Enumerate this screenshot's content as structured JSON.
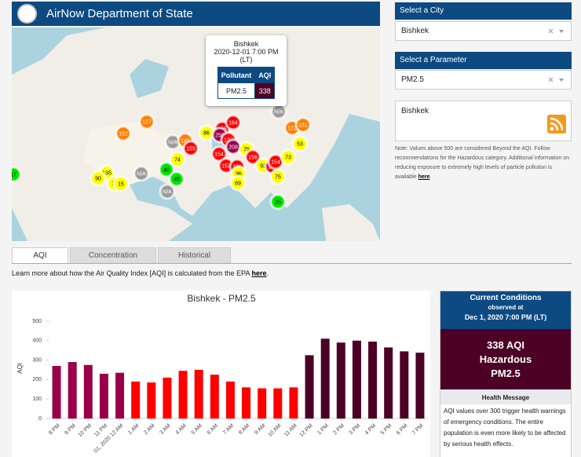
{
  "header": {
    "title": "AirNow Department of State"
  },
  "map": {
    "markers": [
      {
        "label": "17",
        "color": "#00e400"
      },
      {
        "label": "135",
        "color": "#ffff00"
      },
      {
        "label": "90",
        "color": "#ffff00"
      },
      {
        "label": "73",
        "color": "#ffff00"
      },
      {
        "label": "15",
        "color": "#ffff00"
      },
      {
        "label": "N/A",
        "color": "#9a9a9a"
      },
      {
        "label": "152",
        "color": "#ff7e00"
      },
      {
        "label": "127",
        "color": "#ff7e00"
      },
      {
        "label": "N/A",
        "color": "#9a9a9a"
      },
      {
        "label": "145",
        "color": "#ff7e00"
      },
      {
        "label": "155",
        "color": "#ff0000"
      },
      {
        "label": "74",
        "color": "#ffff00"
      },
      {
        "label": "40",
        "color": "#00e400"
      },
      {
        "label": "45",
        "color": "#00e400"
      },
      {
        "label": "N/A",
        "color": "#9a9a9a"
      },
      {
        "label": "86",
        "color": "#ffff00"
      },
      {
        "label": "155",
        "color": "#ff0000"
      },
      {
        "label": "250",
        "color": "#99004c"
      },
      {
        "label": "164",
        "color": "#ff0000"
      },
      {
        "label": "137",
        "color": "#ff0000"
      },
      {
        "label": "154",
        "color": "#ff0000"
      },
      {
        "label": "208",
        "color": "#99004c"
      },
      {
        "label": "75",
        "color": "#ffff00"
      },
      {
        "label": "156",
        "color": "#ff0000"
      },
      {
        "label": "153",
        "color": "#ff0000"
      },
      {
        "label": "131",
        "color": "#ff0000"
      },
      {
        "label": "96",
        "color": "#ffff00"
      },
      {
        "label": "69",
        "color": "#ffff00"
      },
      {
        "label": "93",
        "color": "#ffff00"
      },
      {
        "label": "162",
        "color": "#ff0000"
      },
      {
        "label": "154",
        "color": "#ff0000"
      },
      {
        "label": "73",
        "color": "#ffff00"
      },
      {
        "label": "75",
        "color": "#ffff00"
      },
      {
        "label": "53",
        "color": "#ffff00"
      },
      {
        "label": "122",
        "color": "#ff7e00"
      },
      {
        "label": "131",
        "color": "#ff7e00"
      },
      {
        "label": "N/A",
        "color": "#9a9a9a"
      },
      {
        "label": "35",
        "color": "#00e400"
      }
    ],
    "popup": {
      "city": "Bishkek",
      "time": "2020-12-01 7:00 PM",
      "zone": "(LT)",
      "columns": [
        "Pollutant",
        "AQI"
      ],
      "row": [
        "PM2.5",
        "338"
      ]
    }
  },
  "sidebar": {
    "city": {
      "label": "Select a City",
      "value": "Bishkek"
    },
    "parameter": {
      "label": "Select a Parameter",
      "value": "PM2.5"
    },
    "feed": {
      "title": "Bishkek"
    },
    "note": {
      "text": "Note: Values above 500 are considered Beyond the AQI. Follow recommendations for the Hazardous category. Additional information on reducing exposure to extremely high levels of particle pollution is available ",
      "link": "here",
      "end": "."
    }
  },
  "tabs": [
    "AQI",
    "Concentration",
    "Historical"
  ],
  "info": {
    "text": "Learn more about how the Air Quality Index [AQI] is calculated from the EPA ",
    "link": "here",
    "end": "."
  },
  "chart_data": {
    "type": "bar",
    "title": "Bishkek - PM2.5",
    "y_label": "AQI",
    "categories": [
      "8 PM",
      "9 PM",
      "10 PM",
      "11 PM",
      "01, 2020 12 AM",
      "1 AM",
      "2 AM",
      "3 AM",
      "4 AM",
      "5 AM",
      "6 AM",
      "7 AM",
      "8 AM",
      "9 AM",
      "10 AM",
      "11 AM",
      "12 PM",
      "1 PM",
      "2 PM",
      "3 PM",
      "4 PM",
      "5 PM",
      "6 PM",
      "7 PM"
    ],
    "values": [
      270,
      290,
      275,
      230,
      235,
      190,
      185,
      210,
      245,
      250,
      225,
      190,
      160,
      155,
      155,
      160,
      325,
      410,
      390,
      400,
      395,
      365,
      345,
      338
    ],
    "colors": [
      "#990049",
      "#990049",
      "#990049",
      "#990049",
      "#990049",
      "#ff0000",
      "#ff0000",
      "#ff0000",
      "#ff0000",
      "#ff0000",
      "#ff0000",
      "#ff0000",
      "#ff0000",
      "#ff0000",
      "#ff0000",
      "#ff0000",
      "#4c0026",
      "#4c0026",
      "#4c0026",
      "#4c0026",
      "#4c0026",
      "#4c0026",
      "#4c0026",
      "#4c0026"
    ],
    "ylim": [
      0,
      500
    ],
    "yticks": [
      0,
      100,
      200,
      300,
      400,
      500
    ]
  },
  "current": {
    "title": "Current Conditions",
    "observed": "observed at",
    "time": "Dec 1, 2020 7:00 PM (LT)",
    "aqi": "338 AQI",
    "category": "Hazardous",
    "pollutant": "PM2.5",
    "health_title": "Health Message",
    "health_text": "AQI values over 300 trigger health warnings of emergency conditions. The entire population is even more likely to be affected by serious health effects."
  }
}
